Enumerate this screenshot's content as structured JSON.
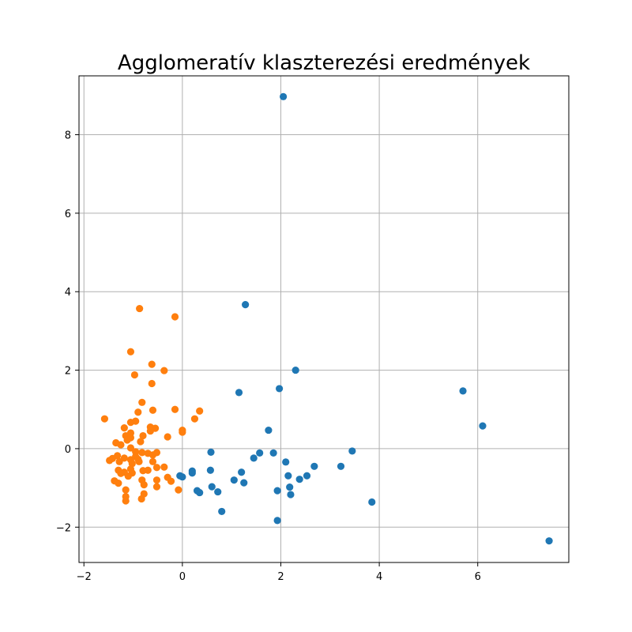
{
  "chart_data": {
    "type": "scatter",
    "title": "Agglomeratív klaszterezési eredmények",
    "xlabel": "",
    "ylabel": "",
    "xlim": [
      -2.1,
      7.85
    ],
    "ylim": [
      -2.9,
      9.5
    ],
    "xticks": [
      -2,
      0,
      2,
      4,
      6
    ],
    "xtick_labels": [
      "−2",
      "0",
      "2",
      "4",
      "6"
    ],
    "yticks": [
      -2,
      0,
      2,
      4,
      6,
      8
    ],
    "ytick_labels": [
      "−2",
      "0",
      "2",
      "4",
      "6",
      "8"
    ],
    "grid": true,
    "series": [
      {
        "color": "#1f77b4",
        "points": [
          [
            2.05,
            8.97
          ],
          [
            1.28,
            3.67
          ],
          [
            2.3,
            2.0
          ],
          [
            1.97,
            1.53
          ],
          [
            1.15,
            1.43
          ],
          [
            5.7,
            1.47
          ],
          [
            6.1,
            0.58
          ],
          [
            1.75,
            0.47
          ],
          [
            3.45,
            -0.06
          ],
          [
            0.58,
            -0.09
          ],
          [
            1.57,
            -0.11
          ],
          [
            1.85,
            -0.11
          ],
          [
            1.45,
            -0.24
          ],
          [
            2.1,
            -0.34
          ],
          [
            2.68,
            -0.45
          ],
          [
            3.22,
            -0.45
          ],
          [
            0.57,
            -0.55
          ],
          [
            0.2,
            -0.57
          ],
          [
            0.2,
            -0.62
          ],
          [
            1.2,
            -0.6
          ],
          [
            -0.05,
            -0.69
          ],
          [
            0.0,
            -0.72
          ],
          [
            2.15,
            -0.69
          ],
          [
            2.53,
            -0.69
          ],
          [
            2.38,
            -0.78
          ],
          [
            1.05,
            -0.8
          ],
          [
            1.25,
            -0.87
          ],
          [
            0.6,
            -0.97
          ],
          [
            2.18,
            -0.98
          ],
          [
            0.3,
            -1.07
          ],
          [
            0.35,
            -1.12
          ],
          [
            0.72,
            -1.1
          ],
          [
            1.93,
            -1.07
          ],
          [
            2.2,
            -1.17
          ],
          [
            3.85,
            -1.36
          ],
          [
            0.8,
            -1.6
          ],
          [
            1.93,
            -1.83
          ],
          [
            7.45,
            -2.35
          ]
        ]
      },
      {
        "color": "#ff7f0e",
        "points": [
          [
            -0.87,
            3.57
          ],
          [
            -0.15,
            3.36
          ],
          [
            -1.05,
            2.47
          ],
          [
            -0.62,
            2.15
          ],
          [
            -0.37,
            1.99
          ],
          [
            -0.97,
            1.88
          ],
          [
            -0.62,
            1.66
          ],
          [
            -0.82,
            1.18
          ],
          [
            -0.6,
            0.98
          ],
          [
            -0.15,
            1.0
          ],
          [
            0.35,
            0.96
          ],
          [
            -0.9,
            0.93
          ],
          [
            -1.58,
            0.76
          ],
          [
            0.25,
            0.76
          ],
          [
            -1.05,
            0.67
          ],
          [
            -0.95,
            0.7
          ],
          [
            -0.65,
            0.55
          ],
          [
            -0.55,
            0.52
          ],
          [
            -1.18,
            0.53
          ],
          [
            -0.65,
            0.45
          ],
          [
            0.0,
            0.47
          ],
          [
            0.0,
            0.42
          ],
          [
            -1.05,
            0.4
          ],
          [
            -1.15,
            0.33
          ],
          [
            -0.8,
            0.33
          ],
          [
            -0.3,
            0.3
          ],
          [
            -1.05,
            0.28
          ],
          [
            -1.12,
            0.22
          ],
          [
            -0.85,
            0.18
          ],
          [
            -1.35,
            0.15
          ],
          [
            -1.25,
            0.1
          ],
          [
            -1.05,
            0.02
          ],
          [
            -0.95,
            -0.08
          ],
          [
            -0.82,
            -0.1
          ],
          [
            -0.7,
            -0.12
          ],
          [
            -0.52,
            -0.1
          ],
          [
            -0.6,
            -0.16
          ],
          [
            -1.32,
            -0.18
          ],
          [
            -0.95,
            -0.2
          ],
          [
            -1.42,
            -0.25
          ],
          [
            -1.18,
            -0.24
          ],
          [
            -1.05,
            -0.28
          ],
          [
            -0.9,
            -0.27
          ],
          [
            -1.48,
            -0.3
          ],
          [
            -1.28,
            -0.33
          ],
          [
            -0.88,
            -0.33
          ],
          [
            -0.6,
            -0.33
          ],
          [
            -1.02,
            -0.38
          ],
          [
            -0.52,
            -0.48
          ],
          [
            -0.37,
            -0.47
          ],
          [
            -1.05,
            -0.52
          ],
          [
            -1.3,
            -0.55
          ],
          [
            -0.8,
            -0.56
          ],
          [
            -0.7,
            -0.55
          ],
          [
            -1.18,
            -0.6
          ],
          [
            -1.02,
            -0.62
          ],
          [
            -1.25,
            -0.63
          ],
          [
            -1.1,
            -0.7
          ],
          [
            -0.3,
            -0.73
          ],
          [
            -0.52,
            -0.8
          ],
          [
            -0.82,
            -0.8
          ],
          [
            -0.23,
            -0.83
          ],
          [
            -1.38,
            -0.82
          ],
          [
            -1.3,
            -0.88
          ],
          [
            -0.78,
            -0.92
          ],
          [
            -0.52,
            -0.97
          ],
          [
            -0.08,
            -1.05
          ],
          [
            -1.15,
            -1.05
          ],
          [
            -0.78,
            -1.15
          ],
          [
            -1.15,
            -1.22
          ],
          [
            -0.83,
            -1.28
          ],
          [
            -1.15,
            -1.33
          ]
        ]
      }
    ]
  }
}
